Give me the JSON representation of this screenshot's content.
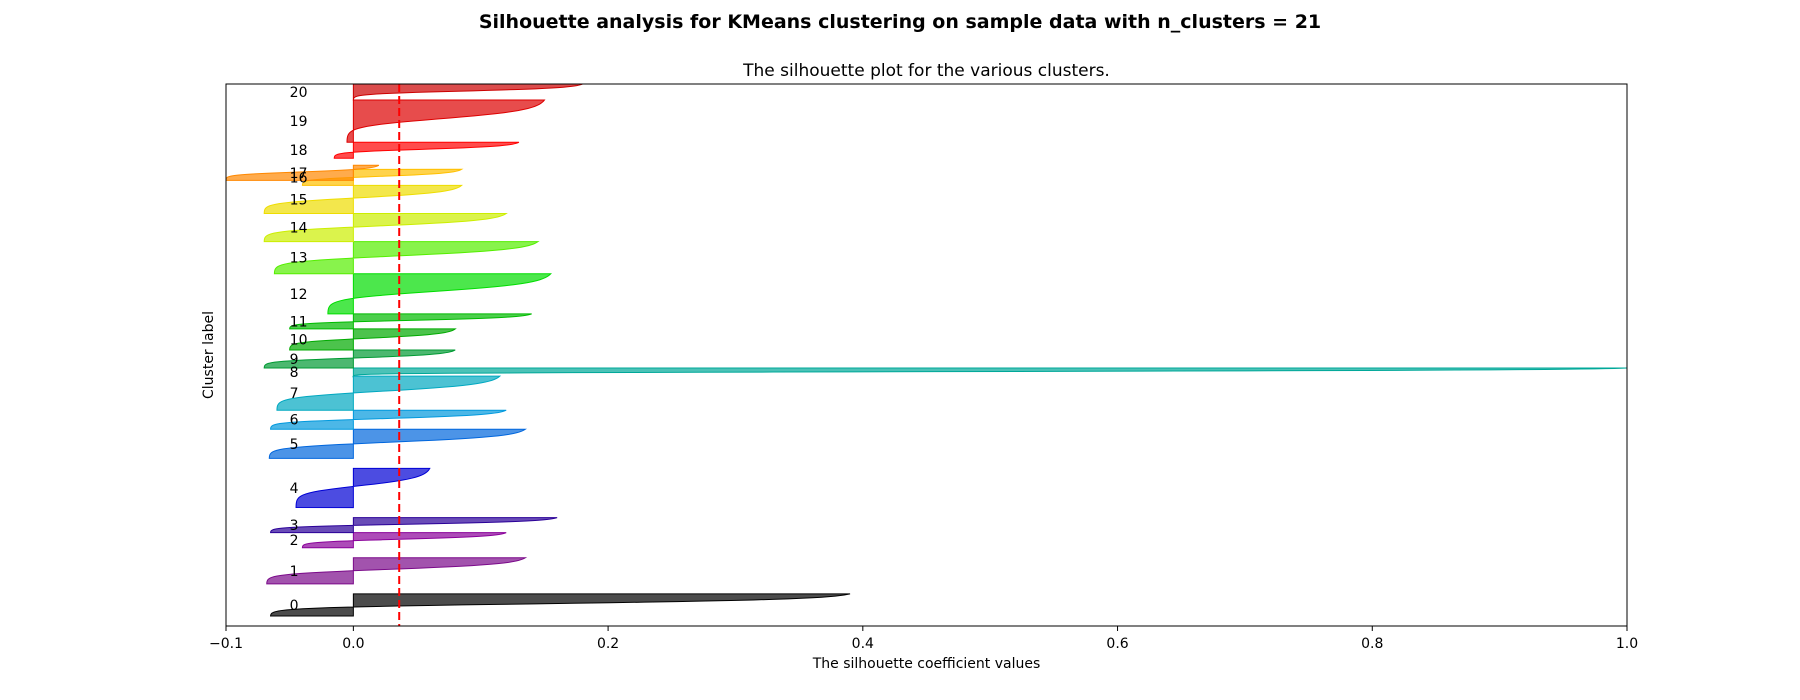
{
  "figure_title": "Silhouette analysis for KMeans clustering on sample data with n_clusters = 21",
  "chart_data": {
    "type": "area",
    "title": "The silhouette plot for the various clusters.",
    "xlabel": "The silhouette coefficient values",
    "ylabel": "Cluster label",
    "xlim": [
      -0.1,
      1.0
    ],
    "ylim": [
      0,
      540
    ],
    "xticks": [
      -0.1,
      0.0,
      0.2,
      0.4,
      0.6,
      0.8,
      1.0
    ],
    "xtick_labels": [
      "−0.1",
      "0.0",
      "0.2",
      "0.4",
      "0.6",
      "0.8",
      "1.0"
    ],
    "yticks_visible": false,
    "average_silhouette": 0.036,
    "average_line_color": "#ff0000",
    "clusters": [
      {
        "label": "0",
        "y0": 10,
        "y1": 32,
        "min": -0.065,
        "max": 0.39,
        "color": "#000000"
      },
      {
        "label": "1",
        "y0": 42,
        "y1": 68,
        "min": -0.068,
        "max": 0.135,
        "color": "#7b0a8a"
      },
      {
        "label": "2",
        "y0": 78,
        "y1": 93,
        "min": -0.04,
        "max": 0.12,
        "color": "#8a009a"
      },
      {
        "label": "3",
        "y0": 93,
        "y1": 108,
        "min": -0.065,
        "max": 0.16,
        "color": "#2a0098"
      },
      {
        "label": "4",
        "y0": 118,
        "y1": 157,
        "min": -0.045,
        "max": 0.06,
        "color": "#0000d4"
      },
      {
        "label": "5",
        "y0": 167,
        "y1": 196,
        "min": -0.066,
        "max": 0.135,
        "color": "#0066dd"
      },
      {
        "label": "6",
        "y0": 196,
        "y1": 215,
        "min": -0.065,
        "max": 0.12,
        "color": "#0099dd"
      },
      {
        "label": "7",
        "y0": 215,
        "y1": 249,
        "min": -0.06,
        "max": 0.115,
        "color": "#00a8c0"
      },
      {
        "label": "8",
        "y0": 249,
        "y1": 257,
        "min": 0.0,
        "max": 1.0,
        "color": "#00a899"
      },
      {
        "label": "9",
        "y0": 257,
        "y1": 275,
        "min": -0.07,
        "max": 0.08,
        "color": "#009a33"
      },
      {
        "label": "10",
        "y0": 275,
        "y1": 296,
        "min": -0.05,
        "max": 0.08,
        "color": "#00aa00"
      },
      {
        "label": "11",
        "y0": 296,
        "y1": 311,
        "min": -0.05,
        "max": 0.14,
        "color": "#00bb00"
      },
      {
        "label": "12",
        "y0": 311,
        "y1": 351,
        "min": -0.02,
        "max": 0.155,
        "color": "#00dd00"
      },
      {
        "label": "13",
        "y0": 351,
        "y1": 383,
        "min": -0.062,
        "max": 0.145,
        "color": "#55ee00"
      },
      {
        "label": "14",
        "y0": 383,
        "y1": 411,
        "min": -0.07,
        "max": 0.12,
        "color": "#ccee00"
      },
      {
        "label": "15",
        "y0": 411,
        "y1": 439,
        "min": -0.07,
        "max": 0.085,
        "color": "#eedd00"
      },
      {
        "label": "16",
        "y0": 439,
        "y1": 455,
        "min": -0.04,
        "max": 0.085,
        "color": "#ffc000"
      },
      {
        "label": "17",
        "y0": 444,
        "y1": 459,
        "min": -0.1,
        "max": 0.02,
        "color": "#ff8800"
      },
      {
        "label": "18",
        "y0": 466,
        "y1": 482,
        "min": -0.015,
        "max": 0.13,
        "color": "#ff0000"
      },
      {
        "label": "19",
        "y0": 482,
        "y1": 524,
        "min": -0.005,
        "max": 0.15,
        "color": "#dd0000"
      },
      {
        "label": "20",
        "y0": 524,
        "y1": 540,
        "min": 0.0,
        "max": 0.18,
        "color": "#cc0000"
      }
    ]
  }
}
